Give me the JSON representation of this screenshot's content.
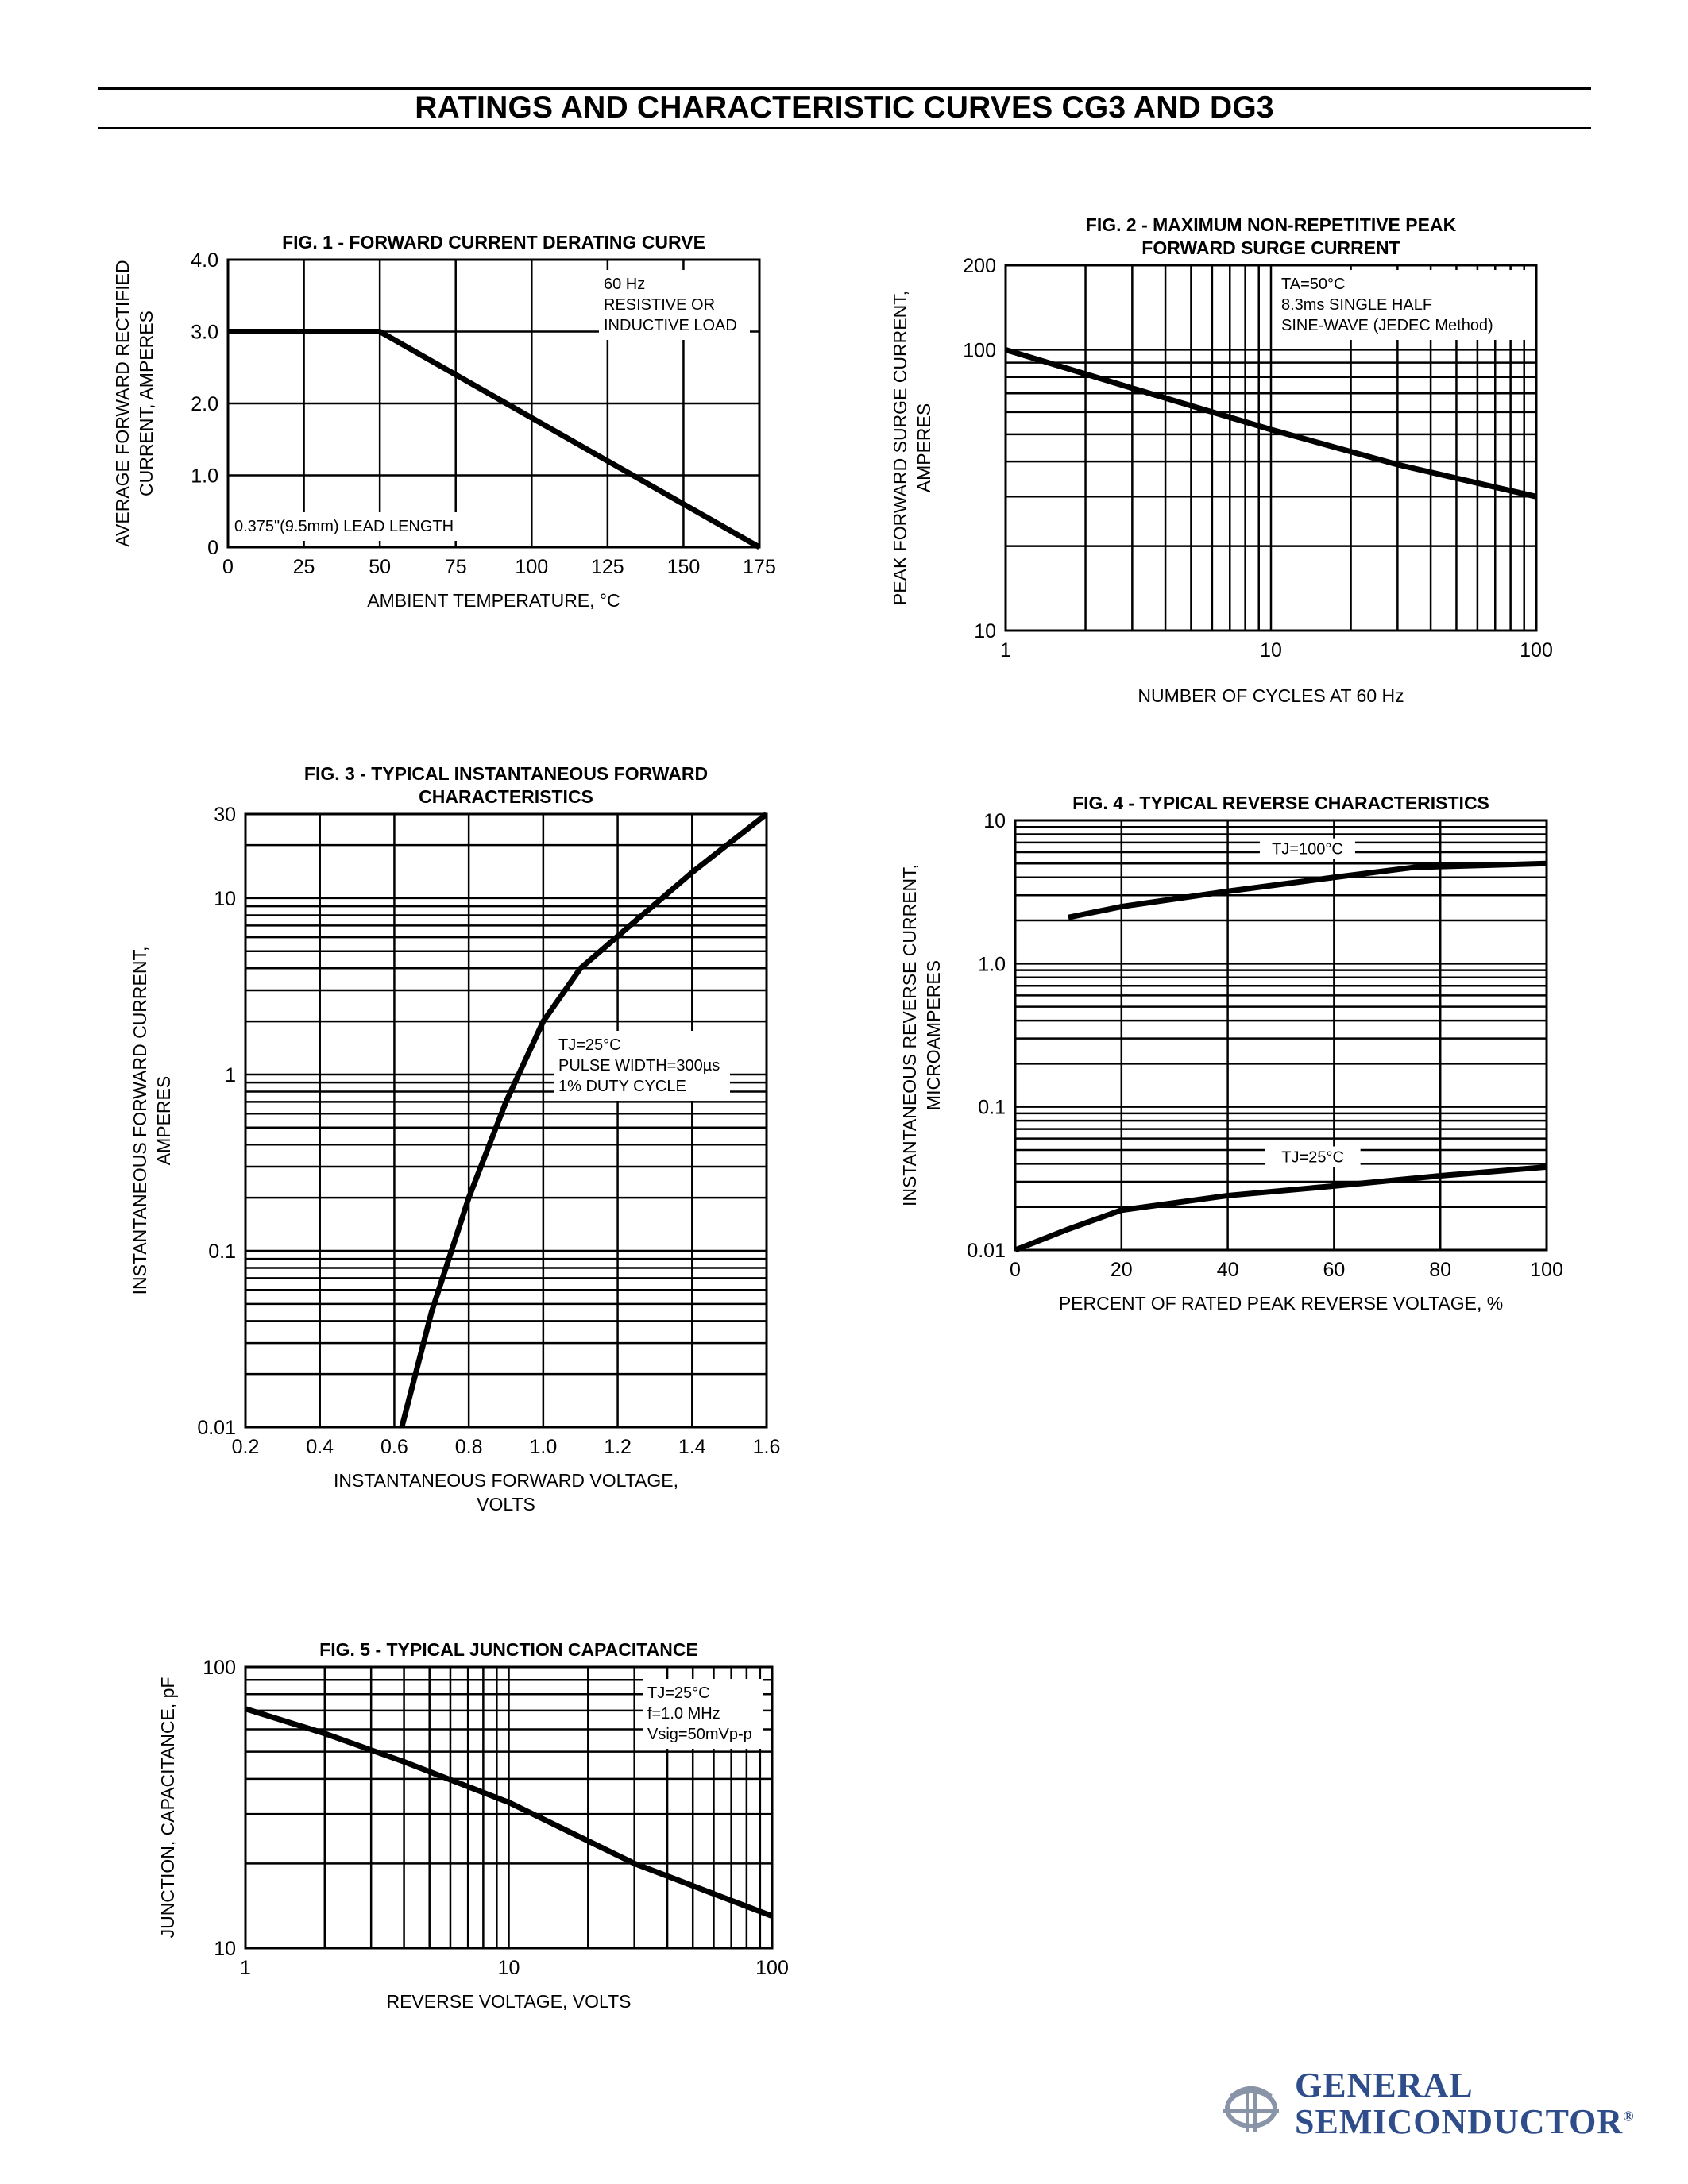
{
  "page": {
    "title": "RATINGS AND CHARACTERISTIC CURVES CG3 AND DG3"
  },
  "brand": {
    "line1": "GENERAL",
    "line2": "SEMICONDUCTOR",
    "reg": "®",
    "logo_icon": "gs-logo-icon",
    "color": "#2f4d8a"
  },
  "chart_data": [
    {
      "id": "fig1",
      "type": "line",
      "title": [
        "FIG. 1 - FORWARD CURRENT DERATING CURVE"
      ],
      "xlabel": [
        "AMBIENT TEMPERATURE, °C"
      ],
      "ylabel": [
        "AVERAGE FORWARD RECTIFIED",
        "CURRENT, AMPERES"
      ],
      "x_scale": "linear",
      "y_scale": "linear",
      "xlim": [
        0,
        175
      ],
      "ylim": [
        0,
        4.0
      ],
      "x_ticks": [
        0,
        25,
        50,
        75,
        100,
        125,
        150,
        175
      ],
      "x_tick_labels": [
        "0",
        "25",
        "50",
        "75",
        "100",
        "125",
        "150",
        "175"
      ],
      "y_ticks": [
        0,
        1.0,
        2.0,
        3.0,
        4.0
      ],
      "y_tick_labels": [
        "0",
        "1.0",
        "2.0",
        "3.0",
        "4.0"
      ],
      "grid_x": [
        25,
        50,
        75,
        100,
        125,
        150
      ],
      "grid_y": [
        1.0,
        2.0,
        3.0
      ],
      "grid": true,
      "annotations": [
        {
          "lines": [
            "60 Hz",
            "RESISTIVE OR",
            "INDUCTIVE LOAD"
          ],
          "position": "top-right"
        },
        {
          "lines": [
            "0.375\"(9.5mm) LEAD LENGTH"
          ],
          "position": "bottom-left"
        }
      ],
      "series": [
        {
          "x": [
            0,
            50,
            175
          ],
          "y": [
            3.0,
            3.0,
            0
          ]
        }
      ]
    },
    {
      "id": "fig2",
      "type": "line",
      "title": [
        "FIG. 2 - MAXIMUM NON-REPETITIVE PEAK",
        "FORWARD SURGE CURRENT"
      ],
      "xlabel": [
        "NUMBER OF CYCLES AT 60 Hz"
      ],
      "ylabel": [
        "PEAK FORWARD SURGE CURRENT,",
        "AMPERES"
      ],
      "x_scale": "log",
      "y_scale": "log",
      "xlim": [
        1,
        100
      ],
      "ylim": [
        10,
        200
      ],
      "x_ticks": [
        1,
        10,
        100
      ],
      "x_tick_labels": [
        "1",
        "10",
        "100"
      ],
      "y_ticks": [
        10,
        100,
        200
      ],
      "y_tick_labels": [
        "10",
        "100",
        "200"
      ],
      "grid_x": [
        2,
        3,
        4,
        5,
        6,
        7,
        8,
        9,
        10,
        20,
        30,
        40,
        50,
        60,
        70,
        80,
        90
      ],
      "grid_y": [
        20,
        30,
        40,
        50,
        60,
        70,
        80,
        90,
        100
      ],
      "grid": true,
      "annotations": [
        {
          "lines": [
            "TA=50°C",
            "8.3ms SINGLE HALF",
            "SINE-WAVE (JEDEC Method)"
          ],
          "position": "top-right"
        }
      ],
      "series": [
        {
          "x": [
            1,
            3,
            10,
            30,
            100
          ],
          "y": [
            100,
            73,
            52,
            39,
            30
          ]
        }
      ]
    },
    {
      "id": "fig3",
      "type": "line",
      "title": [
        "FIG. 3 - TYPICAL INSTANTANEOUS FORWARD",
        "CHARACTERISTICS"
      ],
      "xlabel": [
        "INSTANTANEOUS FORWARD VOLTAGE,",
        "VOLTS"
      ],
      "ylabel": [
        "INSTANTANEOUS FORWARD CURRENT,",
        "AMPERES"
      ],
      "x_scale": "linear",
      "y_scale": "log",
      "xlim": [
        0.2,
        1.6
      ],
      "ylim": [
        0.01,
        30
      ],
      "x_ticks": [
        0.2,
        0.4,
        0.6,
        0.8,
        1.0,
        1.2,
        1.4,
        1.6
      ],
      "x_tick_labels": [
        "0.2",
        "0.4",
        "0.6",
        "0.8",
        "1.0",
        "1.2",
        "1.4",
        "1.6"
      ],
      "y_ticks": [
        0.01,
        0.1,
        1,
        10,
        30
      ],
      "y_tick_labels": [
        "0.01",
        "0.1",
        "1",
        "10",
        "30"
      ],
      "grid_x": [
        0.4,
        0.6,
        0.8,
        1.0,
        1.2,
        1.4
      ],
      "grid_y": [
        0.02,
        0.03,
        0.04,
        0.05,
        0.06,
        0.07,
        0.08,
        0.09,
        0.1,
        0.2,
        0.3,
        0.4,
        0.5,
        0.6,
        0.7,
        0.8,
        0.9,
        1,
        2,
        3,
        4,
        5,
        6,
        7,
        8,
        9,
        10,
        20
      ],
      "grid": true,
      "annotations": [
        {
          "lines": [
            "TJ=25°C",
            "PULSE WIDTH=300µs",
            "1% DUTY CYCLE"
          ],
          "position": "center-right"
        }
      ],
      "series": [
        {
          "x": [
            0.62,
            0.7,
            0.8,
            0.9,
            1.0,
            1.1,
            1.25,
            1.4,
            1.6
          ],
          "y": [
            0.01,
            0.045,
            0.2,
            0.7,
            2.0,
            4.0,
            7.5,
            14,
            30
          ]
        }
      ]
    },
    {
      "id": "fig4",
      "type": "line",
      "title": [
        "FIG. 4 - TYPICAL REVERSE CHARACTERISTICS"
      ],
      "xlabel": [
        "PERCENT OF RATED PEAK REVERSE VOLTAGE, %"
      ],
      "ylabel": [
        "INSTANTANEOUS REVERSE CURRENT,",
        "MICROAMPERES"
      ],
      "x_scale": "linear",
      "y_scale": "log",
      "xlim": [
        0,
        100
      ],
      "ylim": [
        0.01,
        10
      ],
      "x_ticks": [
        0,
        20,
        40,
        60,
        80,
        100
      ],
      "x_tick_labels": [
        "0",
        "20",
        "40",
        "60",
        "80",
        "100"
      ],
      "y_ticks": [
        0.01,
        0.1,
        1.0,
        10
      ],
      "y_tick_labels": [
        "0.01",
        "0.1",
        "1.0",
        "10"
      ],
      "grid_x": [
        20,
        40,
        60,
        80
      ],
      "grid_y": [
        0.02,
        0.03,
        0.04,
        0.05,
        0.06,
        0.07,
        0.08,
        0.09,
        0.1,
        0.2,
        0.3,
        0.4,
        0.5,
        0.6,
        0.7,
        0.8,
        0.9,
        1.0,
        2,
        3,
        4,
        5,
        6,
        7,
        8,
        9
      ],
      "grid": true,
      "annotations": [],
      "series": [
        {
          "name": "TJ=100°C",
          "x": [
            10,
            20,
            40,
            60,
            75,
            100
          ],
          "y": [
            2.1,
            2.5,
            3.2,
            4.0,
            4.7,
            5.0
          ]
        },
        {
          "name": "TJ=25°C",
          "x": [
            0,
            10,
            20,
            40,
            60,
            80,
            100
          ],
          "y": [
            0.01,
            0.014,
            0.019,
            0.024,
            0.028,
            0.033,
            0.038
          ]
        }
      ],
      "series_label_positions": [
        {
          "x": 55,
          "y": 5.8
        },
        {
          "x": 56,
          "y": 0.041
        }
      ]
    },
    {
      "id": "fig5",
      "type": "line",
      "title": [
        "FIG. 5 - TYPICAL JUNCTION CAPACITANCE"
      ],
      "xlabel": [
        "REVERSE VOLTAGE, VOLTS"
      ],
      "ylabel": [
        "JUNCTION, CAPACITANCE, pF"
      ],
      "x_scale": "log",
      "y_scale": "log",
      "xlim": [
        1,
        100
      ],
      "ylim": [
        10,
        100
      ],
      "x_ticks": [
        1,
        10,
        100
      ],
      "x_tick_labels": [
        "1",
        "10",
        "100"
      ],
      "y_ticks": [
        10,
        100
      ],
      "y_tick_labels": [
        "10",
        "100"
      ],
      "grid_x": [
        2,
        3,
        4,
        5,
        6,
        7,
        8,
        9,
        10,
        20,
        30,
        40,
        50,
        60,
        70,
        80,
        90
      ],
      "grid_y": [
        20,
        30,
        40,
        50,
        60,
        70,
        80,
        90
      ],
      "grid": true,
      "annotations": [
        {
          "lines": [
            "TJ=25°C",
            "f=1.0 MHz",
            "Vsig=50mVp-p"
          ],
          "position": "top-right"
        }
      ],
      "series": [
        {
          "x": [
            1,
            2,
            4,
            10,
            30,
            100
          ],
          "y": [
            71,
            58,
            46,
            33,
            20,
            13
          ]
        }
      ]
    }
  ]
}
